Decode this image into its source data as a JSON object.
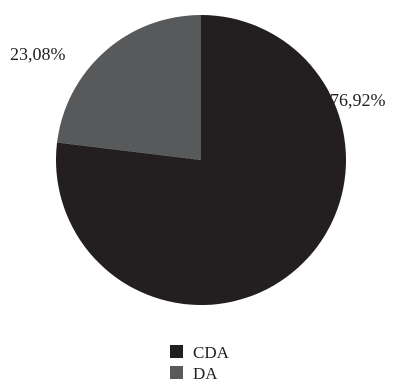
{
  "chart_data": {
    "type": "pie",
    "title": "",
    "slices": [
      {
        "label": "CDA",
        "value": 76.92,
        "value_label": "76,92%",
        "color": "#231f20"
      },
      {
        "label": "DA",
        "value": 23.08,
        "value_label": "23,08%",
        "color": "#58595b"
      }
    ],
    "start": "12 o'clock",
    "direction": "clockwise",
    "legend_position": "bottom-center"
  }
}
